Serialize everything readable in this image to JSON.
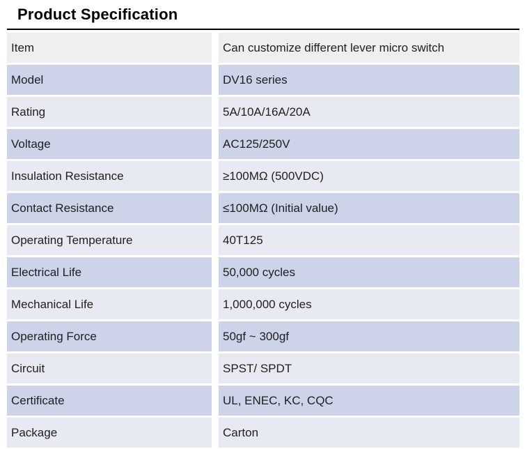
{
  "page": {
    "title": "Product Specification"
  },
  "theme": {
    "header_row_bg": "#efefef",
    "lavender_row_bg": "#cdd3e8",
    "light_row_bg": "#e7e9f3",
    "rule_color": "#000000",
    "text_color": "#1f1f1f"
  },
  "table": {
    "rows": [
      {
        "label": "Item",
        "value": "Can customize different lever micro switch"
      },
      {
        "label": "Model",
        "value": "DV16 series"
      },
      {
        "label": "Rating",
        "value": "5A/10A/16A/20A"
      },
      {
        "label": "Voltage",
        "value": "AC125/250V"
      },
      {
        "label": "Insulation Resistance",
        "value": "≥100MΩ (500VDC)"
      },
      {
        "label": "Contact Resistance",
        "value": "≤100MΩ (Initial value)"
      },
      {
        "label": "Operating Temperature",
        "value": "40T125"
      },
      {
        "label": "Electrical Life",
        "value": "50,000 cycles"
      },
      {
        "label": "Mechanical Life",
        "value": "1,000,000 cycles"
      },
      {
        "label": "Operating Force",
        "value": "50gf ~ 300gf"
      },
      {
        "label": "Circuit",
        "value": "SPST/ SPDT"
      },
      {
        "label": "Certificate",
        "value": "UL, ENEC, KC, CQC"
      },
      {
        "label": "Package",
        "value": "Carton"
      }
    ]
  }
}
